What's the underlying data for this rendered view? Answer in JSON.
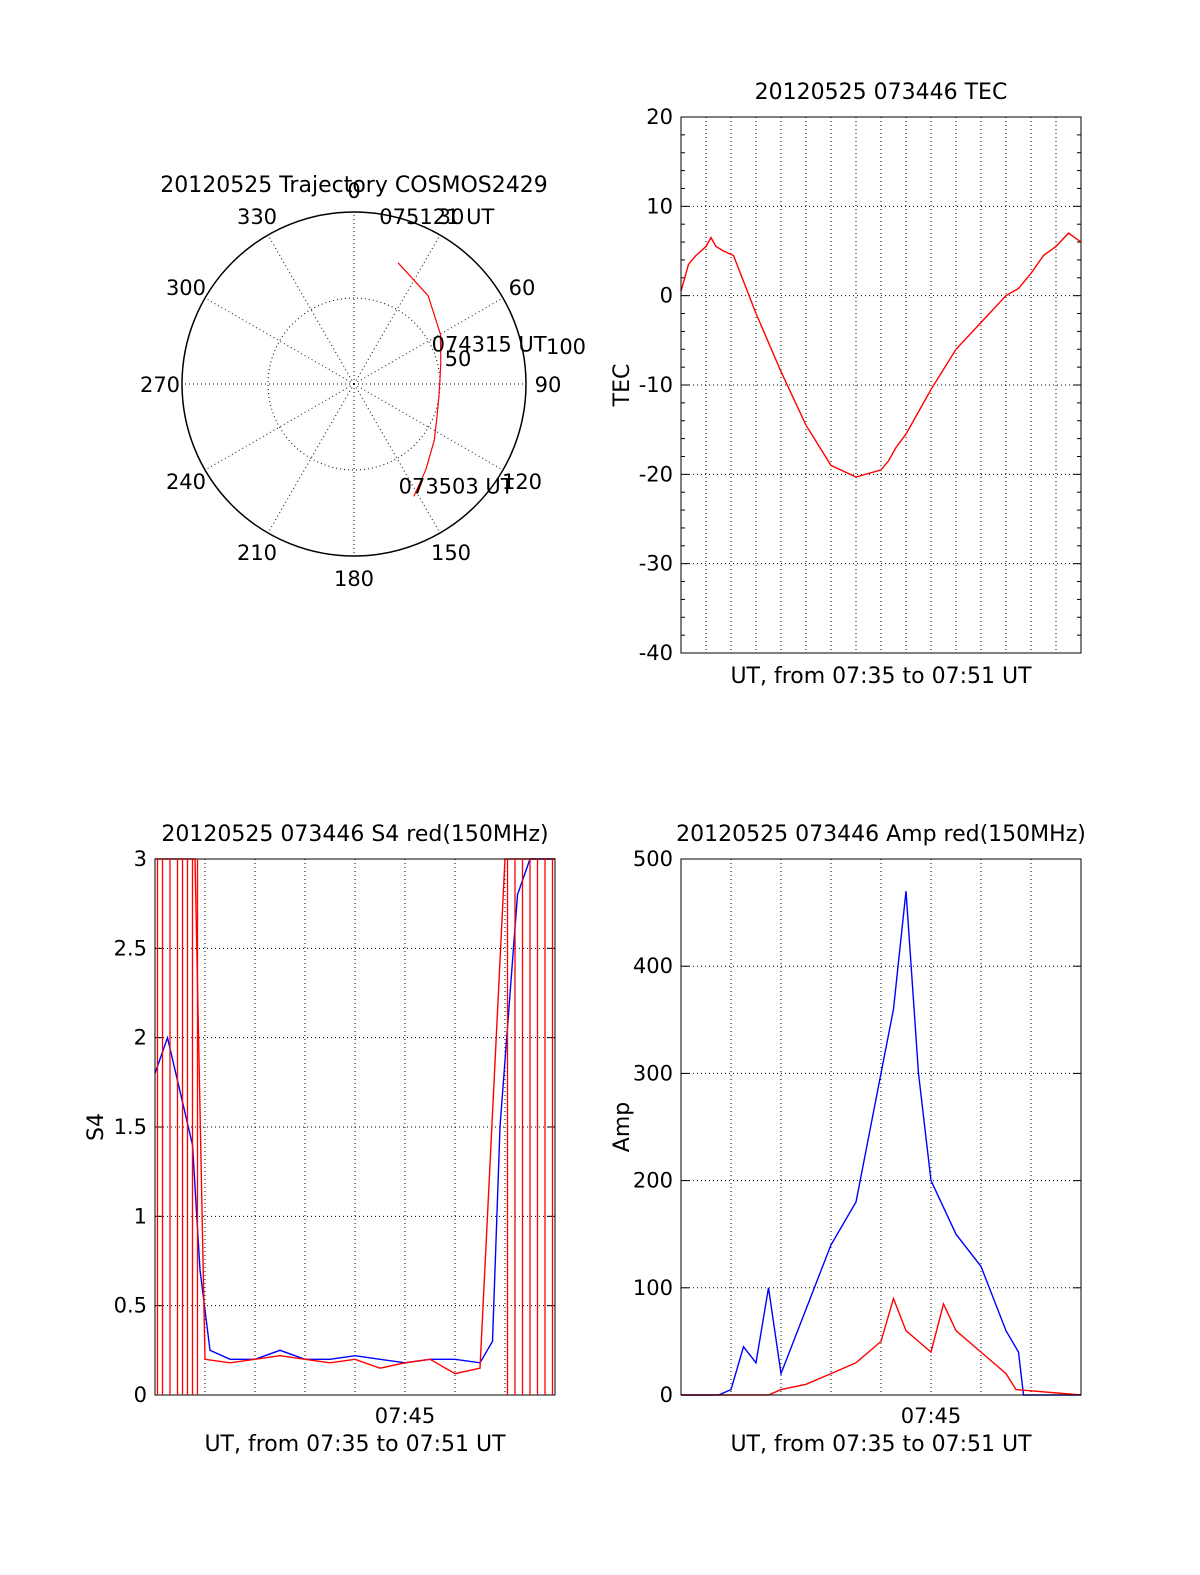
{
  "colors": {
    "red": "#ff0000",
    "blue": "#0000ff",
    "axis": "#000000"
  },
  "chart_data": [
    {
      "type": "polar",
      "title": "20120525 Trajectory COSMOS2429",
      "angle_labels": [
        "0",
        "30",
        "60",
        "90",
        "120",
        "150",
        "180",
        "210",
        "240",
        "270",
        "300",
        "330"
      ],
      "radial_labels": [
        "50",
        "100"
      ],
      "rlim": [
        0,
        100
      ],
      "direction": "clockwise from top",
      "track": {
        "azimuth": [
          20,
          40,
          60,
          76,
          88,
          100,
          112,
          125,
          140,
          152
        ],
        "distance": [
          75,
          67,
          58,
          52,
          50,
          50,
          52,
          57,
          65,
          74
        ],
        "color": "red"
      },
      "annotations": [
        {
          "text": "075121 UT",
          "az": 17,
          "r": 90
        },
        {
          "text": "074315 UT",
          "az": 78,
          "r": 58
        },
        {
          "text": "073503 UT",
          "az": 152,
          "r": 80
        }
      ]
    },
    {
      "type": "line",
      "title": "20120525 073446 TEC",
      "xlabel": "UT, from 07:35 to 07:51 UT",
      "ylabel": "TEC",
      "xlim": [
        0,
        16
      ],
      "ylim": [
        -40,
        20
      ],
      "yticks": [
        20,
        10,
        0,
        -10,
        -20,
        -30,
        -40
      ],
      "grid": true,
      "series": [
        {
          "color": "red",
          "x": [
            0,
            0.3,
            0.6,
            1.0,
            1.2,
            1.4,
            1.7,
            2.1,
            3.0,
            4.0,
            5.0,
            6.0,
            7.0,
            8.0,
            8.3,
            8.6,
            9.0,
            10.0,
            11.0,
            12.0,
            13.0,
            13.5,
            14.0,
            14.5,
            15.0,
            15.5,
            16.0
          ],
          "y": [
            0.5,
            3.5,
            4.5,
            5.5,
            6.5,
            5.5,
            5.0,
            4.5,
            -2,
            -8.5,
            -14.5,
            -19,
            -20.3,
            -19.5,
            -18.5,
            -17,
            -15.5,
            -10.5,
            -6,
            -3,
            0,
            0.8,
            2.5,
            4.5,
            5.5,
            7.0,
            6.0
          ]
        }
      ]
    },
    {
      "type": "line",
      "title": "20120525 073446 S4 red(150MHz)",
      "xlabel": "UT, from 07:35 to 07:51 UT",
      "ylabel": "S4",
      "xtick_labels": [
        "07:45"
      ],
      "ylim": [
        0,
        3
      ],
      "yticks": [
        "3",
        "2.5",
        "2",
        "1.5",
        "1",
        "0.5",
        "0"
      ],
      "grid": true,
      "series": [
        {
          "color": "blue",
          "x": [
            0,
            0.5,
            1.0,
            1.5,
            1.8,
            2.2,
            3,
            4,
            5,
            6,
            7,
            8,
            9,
            10,
            11,
            12,
            13,
            13.5,
            13.8,
            14.5,
            15,
            16
          ],
          "y": [
            1.8,
            2.0,
            1.7,
            1.4,
            0.7,
            0.25,
            0.2,
            0.2,
            0.25,
            0.2,
            0.2,
            0.22,
            0.2,
            0.18,
            0.2,
            0.2,
            0.18,
            0.3,
            1.5,
            2.8,
            3.0,
            3.0
          ]
        },
        {
          "color": "red",
          "x": [
            0,
            1.6,
            2.0,
            3,
            4,
            5,
            6,
            7,
            8,
            9,
            10,
            11,
            12,
            13,
            14,
            16
          ],
          "y": [
            3.0,
            3.0,
            0.2,
            0.18,
            0.2,
            0.22,
            0.2,
            0.18,
            0.2,
            0.15,
            0.18,
            0.2,
            0.12,
            0.15,
            3.0,
            3.0
          ]
        }
      ]
    },
    {
      "type": "line",
      "title": "20120525 073446 Amp red(150MHz)",
      "xlabel": "UT, from 07:35 to 07:51 UT",
      "ylabel": "Amp",
      "xtick_labels": [
        "07:45"
      ],
      "ylim": [
        0,
        500
      ],
      "yticks": [
        "500",
        "400",
        "300",
        "200",
        "100",
        "0"
      ],
      "grid": true,
      "series": [
        {
          "color": "blue",
          "x": [
            0,
            1.5,
            2.0,
            2.5,
            3.0,
            3.5,
            4.0,
            5.0,
            6.0,
            7.0,
            8.0,
            8.5,
            9.0,
            9.5,
            10.0,
            11.0,
            12.0,
            13.0,
            13.5,
            13.7,
            16
          ],
          "y": [
            0,
            0,
            5,
            45,
            30,
            100,
            20,
            80,
            140,
            180,
            300,
            360,
            470,
            300,
            200,
            150,
            120,
            60,
            40,
            0,
            0
          ]
        },
        {
          "color": "red",
          "x": [
            0,
            3.5,
            4.0,
            5.0,
            6.0,
            7.0,
            8.0,
            8.5,
            9.0,
            9.5,
            10.0,
            10.5,
            11.0,
            12.0,
            13.0,
            13.4,
            16
          ],
          "y": [
            0,
            0,
            5,
            10,
            20,
            30,
            50,
            90,
            60,
            50,
            40,
            85,
            60,
            40,
            20,
            5,
            0
          ]
        }
      ]
    }
  ]
}
